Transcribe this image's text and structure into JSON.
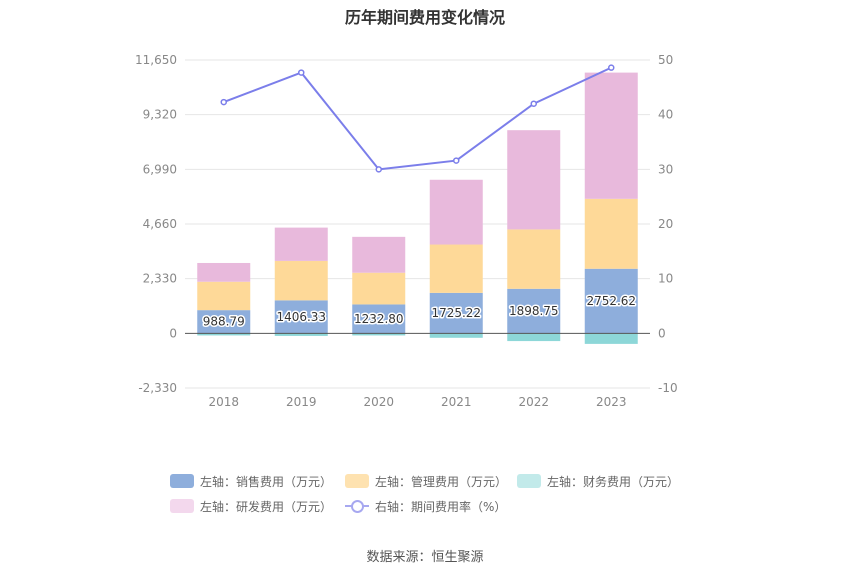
{
  "chart_data": {
    "type": "bar",
    "title": "历年期间费用变化情况",
    "categories": [
      "2018",
      "2019",
      "2020",
      "2021",
      "2022",
      "2023"
    ],
    "stacked": true,
    "left_axis": {
      "ylim": [
        -2330,
        11650
      ],
      "ticks": [
        "-2,330",
        "0",
        "2,330",
        "4,660",
        "6,990",
        "9,320",
        "11,650"
      ],
      "tick_values": [
        -2330,
        0,
        2330,
        4660,
        6990,
        9320,
        11650
      ]
    },
    "right_axis": {
      "ylim": [
        -10,
        50
      ],
      "ticks": [
        "-10",
        "0",
        "10",
        "20",
        "30",
        "40",
        "50"
      ],
      "tick_values": [
        -10,
        0,
        10,
        20,
        30,
        40,
        50
      ]
    },
    "series": [
      {
        "name": "左轴：销售费用（万元）",
        "type": "bar",
        "axis": "left",
        "color": "#8eaedc",
        "values": [
          988.79,
          1406.33,
          1232.8,
          1725.22,
          1898.75,
          2752.62
        ],
        "labels": [
          "988.79",
          "1406.33",
          "1232.80",
          "1725.22",
          "1898.75",
          "2752.62"
        ]
      },
      {
        "name": "左轴：管理费用（万元）",
        "type": "bar",
        "axis": "left",
        "color": "#fed998",
        "values": [
          1210,
          1680,
          1350,
          2060,
          2530,
          2980
        ]
      },
      {
        "name": "左轴：财务费用（万元）",
        "type": "bar",
        "axis": "left",
        "color": "#8dd7d8",
        "values": [
          -90,
          -110,
          -90,
          -190,
          -330,
          -450
        ]
      },
      {
        "name": "左轴：研发费用（万元）",
        "type": "bar",
        "axis": "left",
        "color": "#e8b9dc",
        "values": [
          800,
          1420,
          1530,
          2760,
          4230,
          5380
        ]
      },
      {
        "name": "右轴：期间费用率（%）",
        "type": "line",
        "axis": "right",
        "color": "#7b7eea",
        "values": [
          42.3,
          47.7,
          30.0,
          31.6,
          42.0,
          48.6
        ]
      }
    ],
    "legend_position": "bottom",
    "grid": true
  },
  "legend": [
    {
      "label": "左轴：销售费用（万元）",
      "color": "#8eaedc"
    },
    {
      "label": "左轴：管理费用（万元）",
      "color": "#fee2b0"
    },
    {
      "label": "左轴：财务费用（万元）",
      "color": "#c2eaea"
    },
    {
      "label": "左轴：研发费用（万元）",
      "color": "#f3d8ed"
    },
    {
      "label": "右轴：期间费用率（%）",
      "color": "#a7a8f0"
    }
  ],
  "source": "数据来源：恒生聚源"
}
